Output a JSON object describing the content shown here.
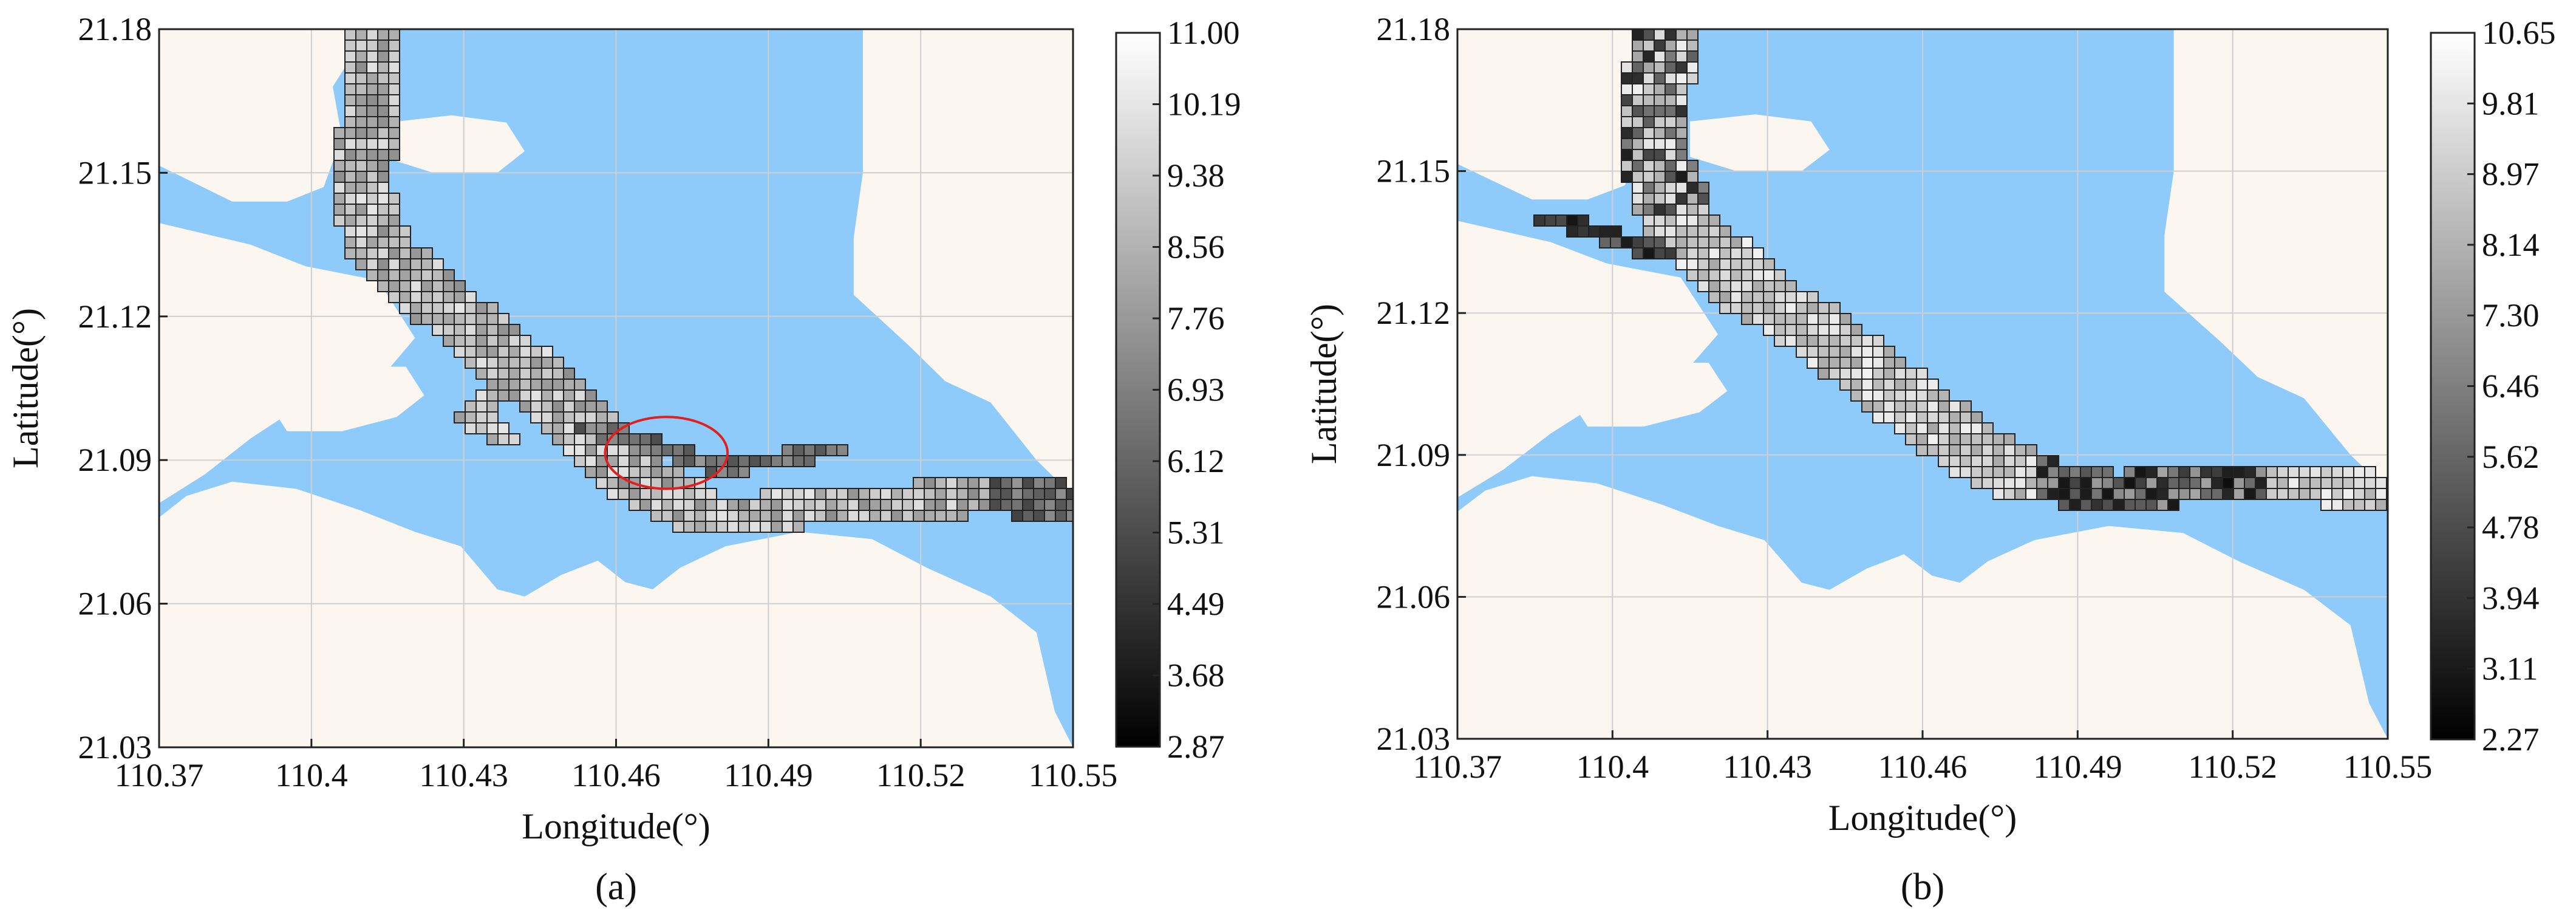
{
  "panels": [
    {
      "caption": "(a)",
      "xlabel": "Longitude(°)",
      "ylabel": "Latitude(°)",
      "xticks": [
        "110.37",
        "110.4",
        "110.43",
        "110.46",
        "110.49",
        "110.52",
        "110.55"
      ],
      "yticks": [
        "21.18",
        "21.15",
        "21.12",
        "21.09",
        "21.06",
        "21.03"
      ],
      "colorbar_ticks": [
        "11.00",
        "10.19",
        "9.38",
        "8.56",
        "7.76",
        "6.93",
        "6.12",
        "5.31",
        "4.49",
        "3.68",
        "2.87"
      ],
      "colorbar_range": [
        2.87,
        11.0
      ],
      "has_red_ellipse": true
    },
    {
      "caption": "(b)",
      "xlabel": "Longitude(°)",
      "ylabel": "Latitude(°)",
      "xticks": [
        "110.37",
        "110.4",
        "110.43",
        "110.46",
        "110.49",
        "110.52",
        "110.55"
      ],
      "yticks": [
        "21.18",
        "21.15",
        "21.12",
        "21.09",
        "21.06",
        "21.03"
      ],
      "colorbar_ticks": [
        "10.65",
        "9.81",
        "8.97",
        "8.14",
        "7.30",
        "6.46",
        "5.62",
        "4.78",
        "3.94",
        "3.11",
        "2.27"
      ],
      "colorbar_range": [
        2.27,
        10.65
      ],
      "has_red_ellipse": false
    }
  ],
  "map": {
    "lon_range": [
      110.37,
      110.55
    ],
    "lat_range": [
      21.03,
      21.18
    ],
    "land_color": "#fbf6ef",
    "water_color": "#8ecbfb",
    "grid_color": "#cfcfcf",
    "annotation_color": "#e02020"
  }
}
